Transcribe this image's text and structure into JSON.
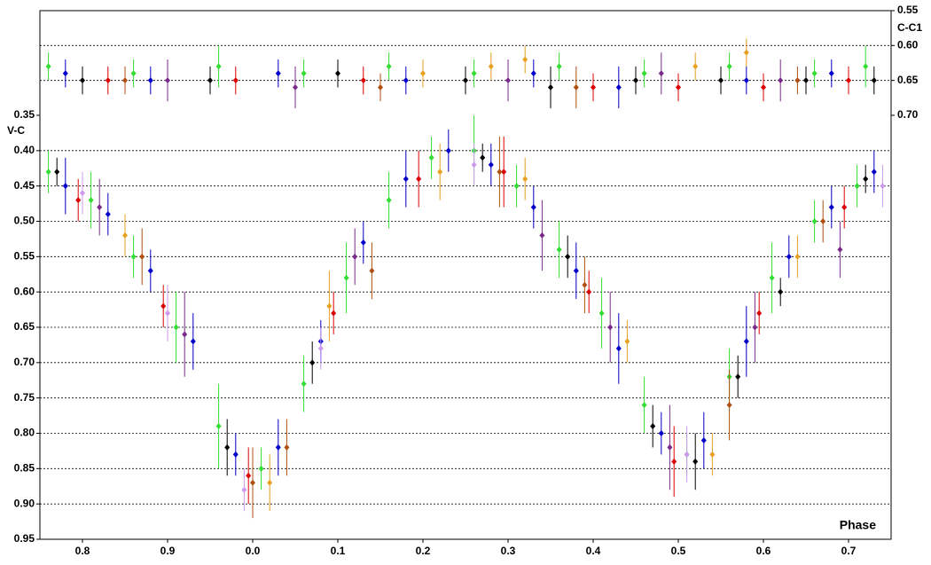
{
  "chart_data": {
    "type": "scatter",
    "ylabel": "V-C",
    "y2label": "C-C1",
    "xlabel": "Phase",
    "xlim": [
      0.75,
      1.75
    ],
    "xticks": [
      0.8,
      0.9,
      {
        "value": 1.0,
        "label": "0.0"
      },
      {
        "value": 1.1,
        "label": "0.1"
      },
      {
        "value": 1.2,
        "label": "0.2"
      },
      {
        "value": 1.3,
        "label": "0.3"
      },
      {
        "value": 1.4,
        "label": "0.4"
      },
      {
        "value": 1.5,
        "label": "0.5"
      },
      {
        "value": 1.6,
        "label": "0.6"
      },
      {
        "value": 1.7,
        "label": "0.7"
      }
    ],
    "ylim": [
      0.35,
      0.95
    ],
    "yticks": [
      0.35,
      {
        "value": 0.4,
        "label": "0.40"
      },
      0.45,
      {
        "value": 0.5,
        "label": "0.50"
      },
      0.55,
      {
        "value": 0.6,
        "label": "0.60"
      },
      0.65,
      {
        "value": 0.7,
        "label": "0.70"
      },
      0.75,
      {
        "value": 0.8,
        "label": "0.80"
      },
      0.85,
      {
        "value": 0.9,
        "label": "0.90"
      },
      0.95
    ],
    "y2lim": [
      0.55,
      0.7
    ],
    "y2ticks": [
      0.55,
      {
        "value": 0.6,
        "label": "0.60"
      },
      0.65,
      {
        "value": 0.7,
        "label": "0.70"
      }
    ],
    "inverted": true,
    "grid": true,
    "series": [
      {
        "color": "#33dd33",
        "x": [
          0.76,
          0.81,
          0.86,
          0.91,
          0.96,
          1.01,
          1.06,
          1.11,
          1.16,
          1.21,
          1.26,
          1.31,
          1.36,
          1.41,
          1.46,
          1.51,
          1.56,
          1.61,
          1.66,
          1.71
        ],
        "values": [
          0.43,
          0.47,
          0.55,
          0.65,
          0.79,
          0.85,
          0.73,
          0.58,
          0.47,
          0.41,
          0.4,
          0.45,
          0.54,
          0.63,
          0.76,
          0.83,
          0.72,
          0.58,
          0.5,
          0.45
        ],
        "errors": [
          0.03,
          0.04,
          0.03,
          0.05,
          0.06,
          0.03,
          0.04,
          0.05,
          0.04,
          0.03,
          0.05,
          0.03,
          0.04,
          0.05,
          0.04,
          0.03,
          0.04,
          0.05,
          0.03,
          0.03
        ]
      },
      {
        "color": "#0000cc",
        "x": [
          0.78,
          0.83,
          0.88,
          0.93,
          0.98,
          1.03,
          1.08,
          1.13,
          1.18,
          1.23,
          1.28,
          1.33,
          1.38,
          1.43,
          1.48,
          1.53,
          1.58,
          1.63,
          1.68,
          1.73
        ],
        "values": [
          0.45,
          0.49,
          0.57,
          0.67,
          0.83,
          0.82,
          0.67,
          0.53,
          0.44,
          0.4,
          0.42,
          0.48,
          0.57,
          0.68,
          0.8,
          0.81,
          0.67,
          0.55,
          0.48,
          0.43
        ],
        "errors": [
          0.04,
          0.03,
          0.03,
          0.04,
          0.03,
          0.04,
          0.03,
          0.03,
          0.04,
          0.03,
          0.03,
          0.03,
          0.04,
          0.05,
          0.03,
          0.04,
          0.05,
          0.03,
          0.03,
          0.03
        ]
      },
      {
        "color": "#dd0000",
        "x": [
          0.795,
          0.895,
          0.995,
          1.095,
          1.195,
          1.295,
          1.395,
          1.495,
          1.595,
          1.695
        ],
        "values": [
          0.47,
          0.62,
          0.86,
          0.63,
          0.44,
          0.43,
          0.6,
          0.84,
          0.63,
          0.48
        ],
        "errors": [
          0.03,
          0.03,
          0.04,
          0.03,
          0.04,
          0.05,
          0.03,
          0.05,
          0.03,
          0.03
        ]
      },
      {
        "color": "#000000",
        "x": [
          0.77,
          0.97,
          1.07,
          1.27,
          1.37,
          1.47,
          1.52,
          1.57,
          1.62,
          1.72
        ],
        "values": [
          0.43,
          0.82,
          0.7,
          0.41,
          0.55,
          0.79,
          0.84,
          0.72,
          0.6,
          0.44
        ],
        "errors": [
          0.02,
          0.04,
          0.03,
          0.02,
          0.03,
          0.03,
          0.04,
          0.03,
          0.02,
          0.02
        ]
      },
      {
        "color": "#e8a020",
        "x": [
          0.85,
          1.02,
          1.09,
          1.22,
          1.32,
          1.44,
          1.54,
          1.64
        ],
        "values": [
          0.52,
          0.87,
          0.62,
          0.43,
          0.44,
          0.67,
          0.83,
          0.55
        ],
        "errors": [
          0.03,
          0.04,
          0.05,
          0.04,
          0.03,
          0.03,
          0.03,
          0.03
        ]
      },
      {
        "color": "#7a2a8a",
        "x": [
          0.82,
          0.92,
          1.12,
          1.34,
          1.42,
          1.49,
          1.59,
          1.69
        ],
        "values": [
          0.48,
          0.66,
          0.55,
          0.52,
          0.65,
          0.82,
          0.65,
          0.54
        ],
        "errors": [
          0.04,
          0.06,
          0.04,
          0.05,
          0.05,
          0.06,
          0.05,
          0.04
        ]
      },
      {
        "color": "#b05010",
        "x": [
          0.87,
          1.0,
          1.04,
          1.14,
          1.29,
          1.39,
          1.56,
          1.67
        ],
        "values": [
          0.55,
          0.87,
          0.82,
          0.57,
          0.43,
          0.59,
          0.76,
          0.5
        ],
        "errors": [
          0.04,
          0.05,
          0.04,
          0.04,
          0.05,
          0.04,
          0.05,
          0.03
        ]
      },
      {
        "color": "#cc99ee",
        "x": [
          0.8,
          0.9,
          0.99,
          1.08,
          1.26,
          1.51,
          1.74
        ],
        "values": [
          0.46,
          0.63,
          0.88,
          0.68,
          0.42,
          0.83,
          0.45
        ],
        "errors": [
          0.03,
          0.04,
          0.03,
          0.03,
          0.03,
          0.04,
          0.03
        ]
      },
      {
        "color": "#33dd33",
        "axis": "y2",
        "x": [
          0.76,
          0.86,
          0.96,
          1.06,
          1.16,
          1.26,
          1.36,
          1.46,
          1.56,
          1.66,
          1.72
        ],
        "values": [
          0.63,
          0.64,
          0.63,
          0.64,
          0.63,
          0.64,
          0.63,
          0.64,
          0.63,
          0.64,
          0.63
        ],
        "errors": [
          0.02,
          0.02,
          0.03,
          0.02,
          0.02,
          0.02,
          0.02,
          0.02,
          0.02,
          0.02,
          0.03
        ]
      },
      {
        "color": "#000000",
        "axis": "y2",
        "x": [
          0.8,
          0.95,
          1.1,
          1.25,
          1.35,
          1.45,
          1.55,
          1.65,
          1.73
        ],
        "values": [
          0.65,
          0.65,
          0.64,
          0.65,
          0.66,
          0.65,
          0.65,
          0.65,
          0.65
        ],
        "errors": [
          0.02,
          0.02,
          0.02,
          0.02,
          0.03,
          0.02,
          0.02,
          0.02,
          0.02
        ]
      },
      {
        "color": "#0000cc",
        "axis": "y2",
        "x": [
          0.78,
          0.88,
          1.03,
          1.18,
          1.33,
          1.43,
          1.58,
          1.68
        ],
        "values": [
          0.64,
          0.65,
          0.64,
          0.65,
          0.64,
          0.66,
          0.65,
          0.64
        ],
        "errors": [
          0.02,
          0.02,
          0.02,
          0.02,
          0.02,
          0.03,
          0.02,
          0.02
        ]
      },
      {
        "color": "#dd0000",
        "axis": "y2",
        "x": [
          0.83,
          0.98,
          1.13,
          1.4,
          1.5,
          1.6,
          1.7
        ],
        "values": [
          0.65,
          0.65,
          0.65,
          0.66,
          0.66,
          0.66,
          0.65
        ],
        "errors": [
          0.02,
          0.02,
          0.02,
          0.02,
          0.02,
          0.02,
          0.02
        ]
      },
      {
        "color": "#e8a020",
        "axis": "y2",
        "x": [
          1.2,
          1.28,
          1.32,
          1.52,
          1.58
        ],
        "values": [
          0.64,
          0.63,
          0.62,
          0.63,
          0.61
        ],
        "errors": [
          0.02,
          0.02,
          0.02,
          0.02,
          0.02
        ]
      },
      {
        "color": "#7a2a8a",
        "axis": "y2",
        "x": [
          0.9,
          1.05,
          1.3,
          1.48,
          1.62
        ],
        "values": [
          0.65,
          0.66,
          0.65,
          0.64,
          0.65
        ],
        "errors": [
          0.03,
          0.03,
          0.03,
          0.03,
          0.03
        ]
      },
      {
        "color": "#b05010",
        "axis": "y2",
        "x": [
          0.85,
          1.15,
          1.38,
          1.64
        ],
        "values": [
          0.65,
          0.66,
          0.66,
          0.65
        ],
        "errors": [
          0.02,
          0.02,
          0.03,
          0.02
        ]
      }
    ]
  }
}
